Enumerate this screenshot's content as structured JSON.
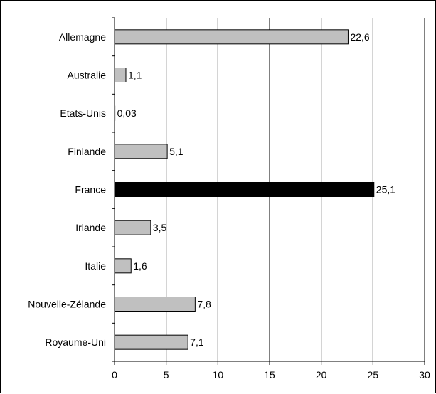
{
  "chart_data": {
    "type": "bar",
    "orientation": "horizontal",
    "categories": [
      "Allemagne",
      "Australie",
      "Etats-Unis",
      "Finlande",
      "France",
      "Irlande",
      "Italie",
      "Nouvelle-Zélande",
      "Royaume-Uni"
    ],
    "values": [
      22.6,
      1.1,
      0.03,
      5.1,
      25.1,
      3.5,
      1.6,
      7.8,
      7.1
    ],
    "value_labels": [
      "22,6",
      "1,1",
      "0,03",
      "5,1",
      "25,1",
      "3,5",
      "1,6",
      "7,8",
      "7,1"
    ],
    "x_ticks": [
      "0",
      "5",
      "10",
      "15",
      "20",
      "25",
      "30"
    ],
    "xlim": [
      0,
      30
    ],
    "grid": "vertical",
    "colors": {
      "default_bar": "#c0c0c0",
      "highlight_bar": "#000000",
      "highlight_category": "France",
      "bar_border": "#000000"
    }
  }
}
